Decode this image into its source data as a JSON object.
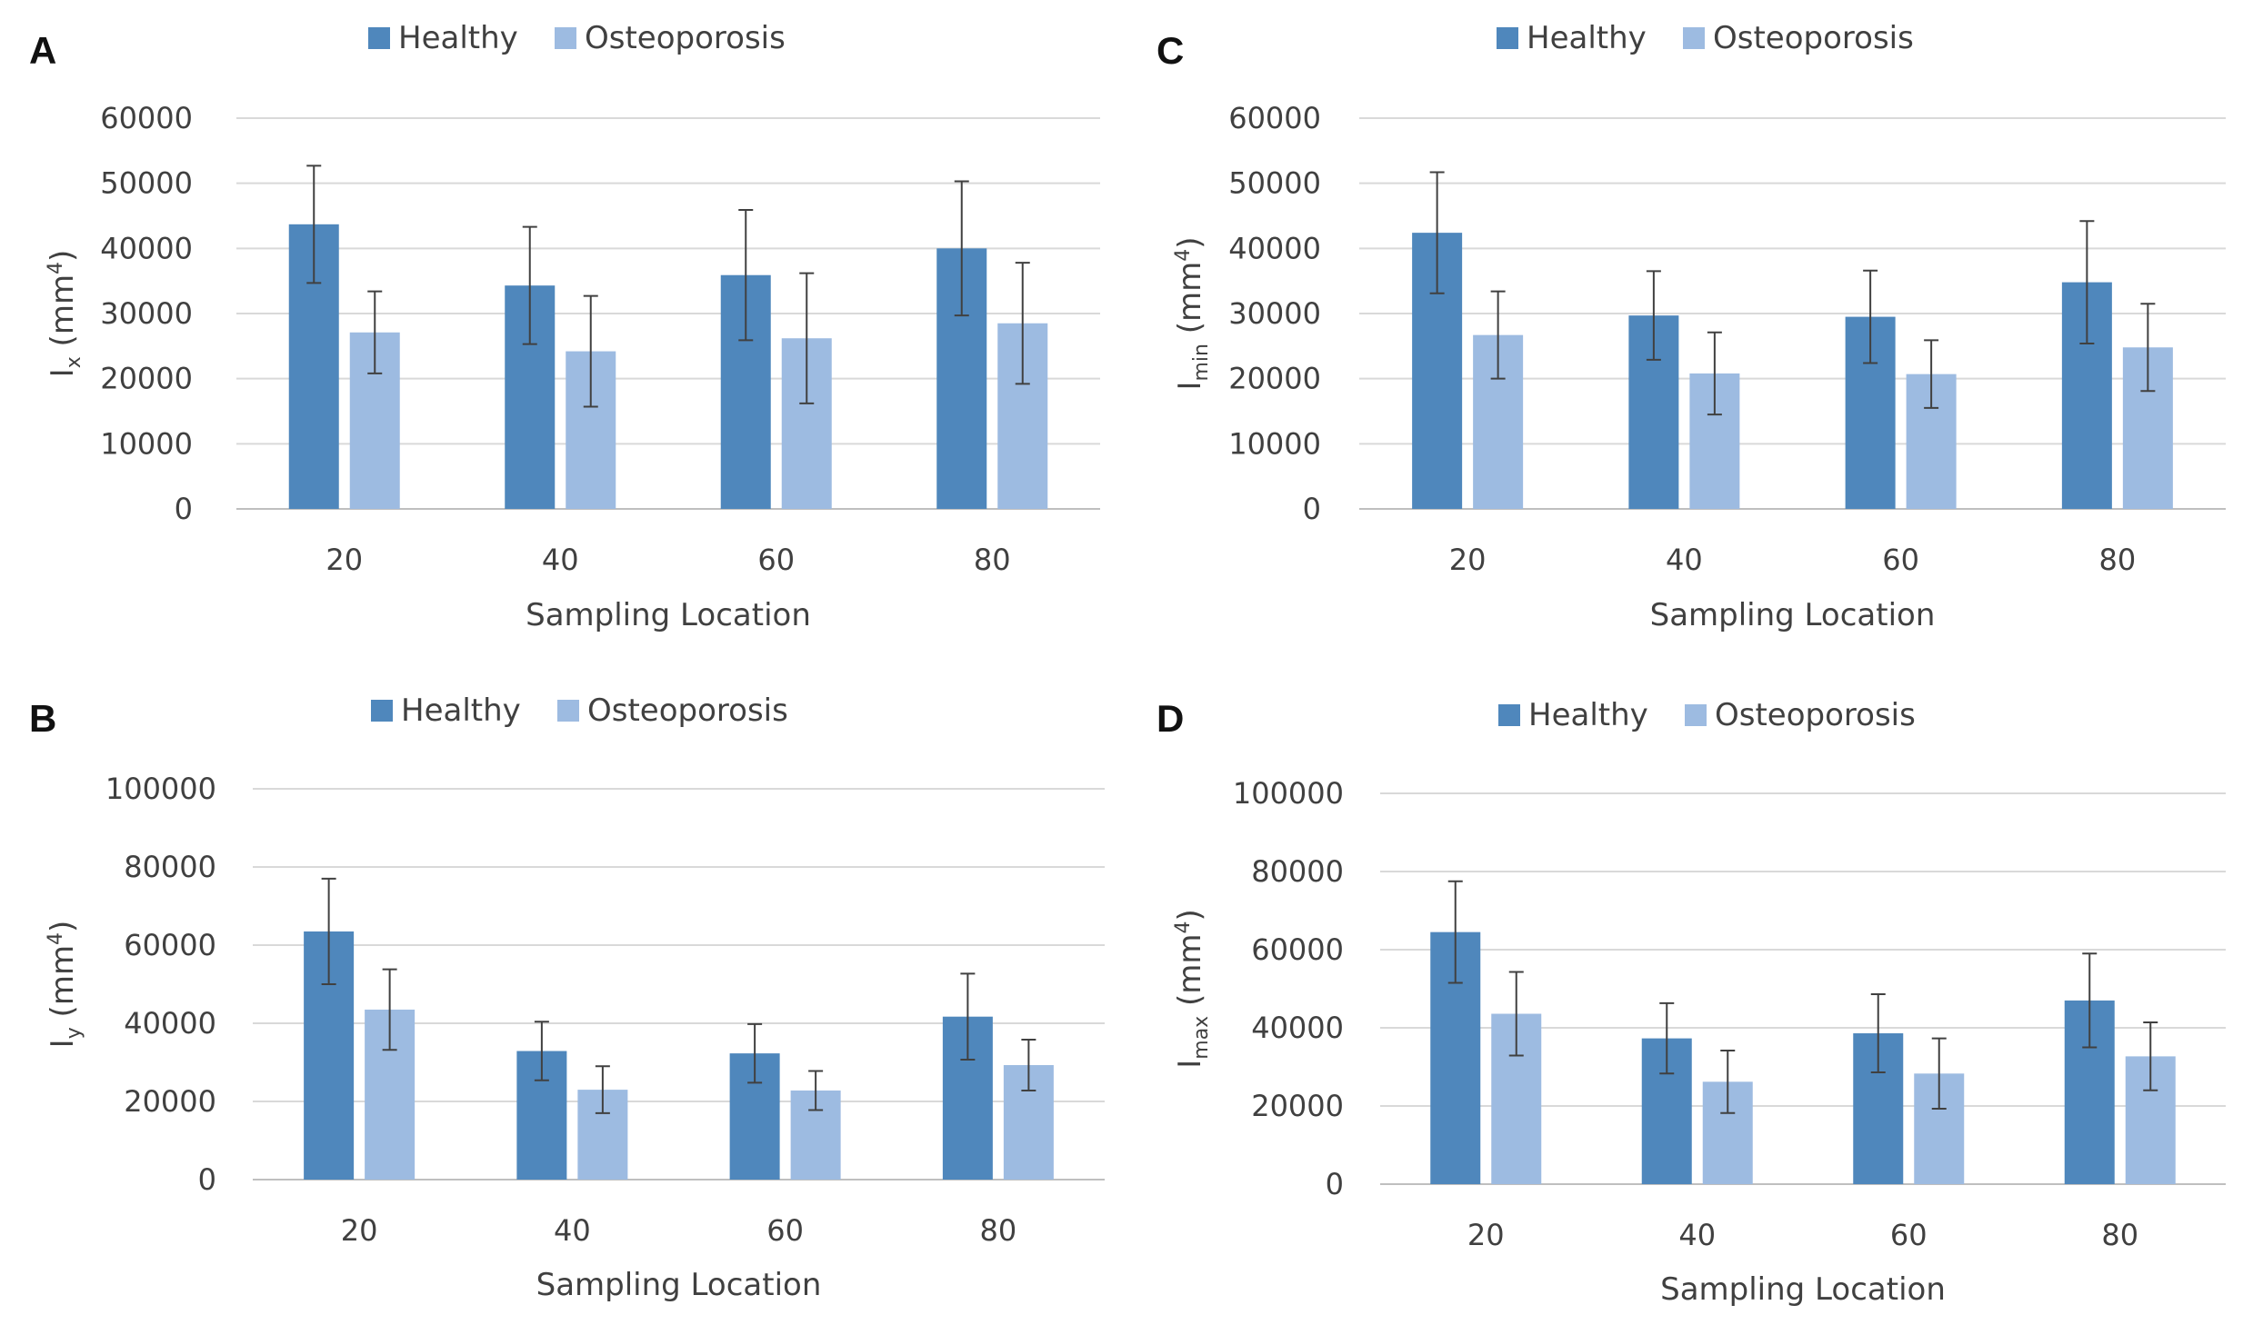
{
  "legend": {
    "series": [
      {
        "name": "Healthy",
        "color": "#4f87bc"
      },
      {
        "name": "Osteoporosis",
        "color": "#9dbbe1"
      }
    ]
  },
  "chart_data": [
    {
      "panel": "A",
      "type": "bar",
      "title": "",
      "categories": [
        "20",
        "40",
        "60",
        "80"
      ],
      "xlabel": "Sampling Location",
      "ylabel": {
        "main": "I",
        "sub": "x",
        "rest": " (mm",
        "sup": "4",
        "end": ")"
      },
      "ylim": [
        0,
        60000
      ],
      "yticks": [
        0,
        10000,
        20000,
        30000,
        40000,
        50000,
        60000
      ],
      "legend_position": "top",
      "grid": true,
      "series": [
        {
          "name": "Healthy",
          "values": [
            43700,
            34300,
            35900,
            40000
          ],
          "errors": [
            9000,
            9000,
            10000,
            10300
          ]
        },
        {
          "name": "Osteoporosis",
          "values": [
            27100,
            24200,
            26200,
            28500
          ],
          "errors": [
            6300,
            8500,
            10000,
            9300
          ]
        }
      ]
    },
    {
      "panel": "B",
      "type": "bar",
      "title": "",
      "categories": [
        "20",
        "40",
        "60",
        "80"
      ],
      "xlabel": "Sampling Location",
      "ylabel": {
        "main": "I",
        "sub": "y",
        "rest": " (mm",
        "sup": "4",
        "end": ")"
      },
      "ylim": [
        0,
        100000
      ],
      "yticks": [
        0,
        20000,
        40000,
        60000,
        80000,
        100000
      ],
      "legend_position": "top",
      "grid": true,
      "series": [
        {
          "name": "Healthy",
          "values": [
            63500,
            32900,
            32300,
            41700
          ],
          "errors": [
            13500,
            7500,
            7500,
            11000
          ]
        },
        {
          "name": "Osteoporosis",
          "values": [
            43500,
            23000,
            22800,
            29300
          ],
          "errors": [
            10300,
            6000,
            5000,
            6500
          ]
        }
      ]
    },
    {
      "panel": "C",
      "type": "bar",
      "title": "",
      "categories": [
        "20",
        "40",
        "60",
        "80"
      ],
      "xlabel": "Sampling Location",
      "ylabel": {
        "main": "I",
        "sub": "min",
        "rest": " (mm",
        "sup": "4",
        "end": ")"
      },
      "ylim": [
        0,
        60000
      ],
      "yticks": [
        0,
        10000,
        20000,
        30000,
        40000,
        50000,
        60000
      ],
      "legend_position": "top",
      "grid": true,
      "series": [
        {
          "name": "Healthy",
          "values": [
            42400,
            29700,
            29500,
            34800
          ],
          "errors": [
            9300,
            6800,
            7100,
            9400
          ]
        },
        {
          "name": "Osteoporosis",
          "values": [
            26700,
            20800,
            20700,
            24800
          ],
          "errors": [
            6700,
            6300,
            5200,
            6700
          ]
        }
      ]
    },
    {
      "panel": "D",
      "type": "bar",
      "title": "",
      "categories": [
        "20",
        "40",
        "60",
        "80"
      ],
      "xlabel": "Sampling Location",
      "ylabel": {
        "main": "I",
        "sub": "max",
        "rest": " (mm",
        "sup": "4",
        "end": ")"
      },
      "ylim": [
        0,
        100000
      ],
      "yticks": [
        0,
        20000,
        40000,
        60000,
        80000,
        100000
      ],
      "legend_position": "top",
      "grid": true,
      "series": [
        {
          "name": "Healthy",
          "values": [
            64500,
            37300,
            38600,
            47000
          ],
          "errors": [
            13000,
            9000,
            10000,
            12000
          ]
        },
        {
          "name": "Osteoporosis",
          "values": [
            43600,
            26200,
            28300,
            32700
          ],
          "errors": [
            10700,
            8000,
            9000,
            8700
          ]
        }
      ]
    }
  ]
}
